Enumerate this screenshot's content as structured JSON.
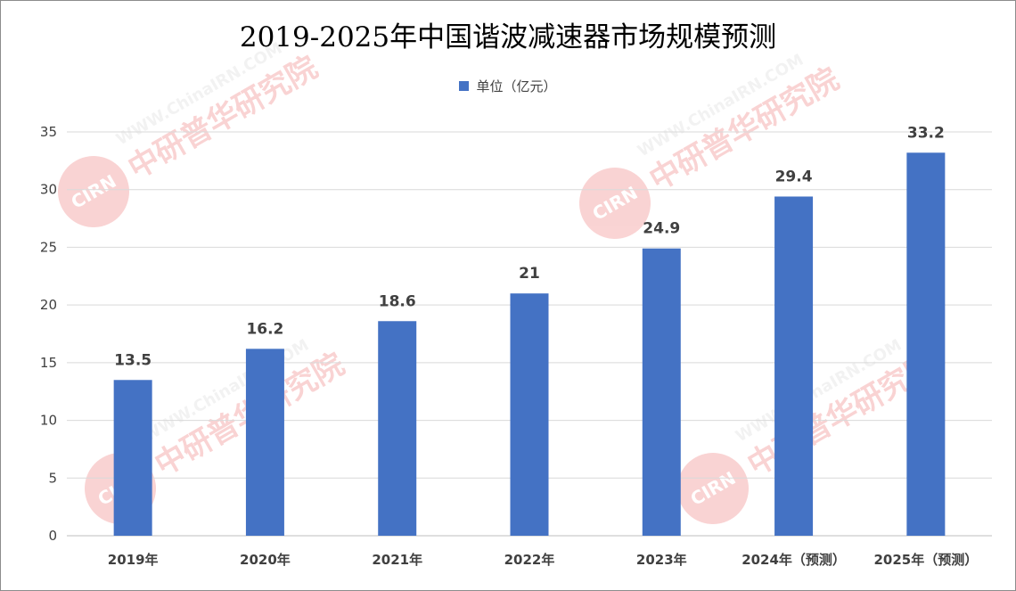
{
  "title": "2019-2025年中国谐波减速器市场规模预测",
  "watermark": {
    "logo_text": "CIRN",
    "brand_text": "中研普华研究院",
    "url_text": "WWW.ChinaIRN.COM"
  },
  "colors": {
    "bar": "#4472C4",
    "grid": "#d9d9d9",
    "axis": "#bfbfbf",
    "text": "#404040",
    "watermark_red": "#e83a3a",
    "watermark_gray": "#c8c8c8"
  },
  "chart_data": {
    "type": "bar",
    "title": "2019-2025年中国谐波减速器市场规模预测",
    "categories": [
      "2019年",
      "2020年",
      "2021年",
      "2022年",
      "2023年",
      "2024年（预测）",
      "2025年（预测）"
    ],
    "series": [
      {
        "name": "单位（亿元）",
        "values": [
          13.5,
          16.2,
          18.6,
          21,
          24.9,
          29.4,
          33.2
        ],
        "value_labels": [
          "13.5",
          "16.2",
          "18.6",
          "21",
          "24.9",
          "29.4",
          "33.2"
        ]
      }
    ],
    "xlabel": "",
    "ylabel": "",
    "ylim": [
      0,
      35
    ],
    "yticks": [
      0,
      5,
      10,
      15,
      20,
      25,
      30,
      35
    ],
    "grid": true,
    "legend_position": "top-center"
  }
}
